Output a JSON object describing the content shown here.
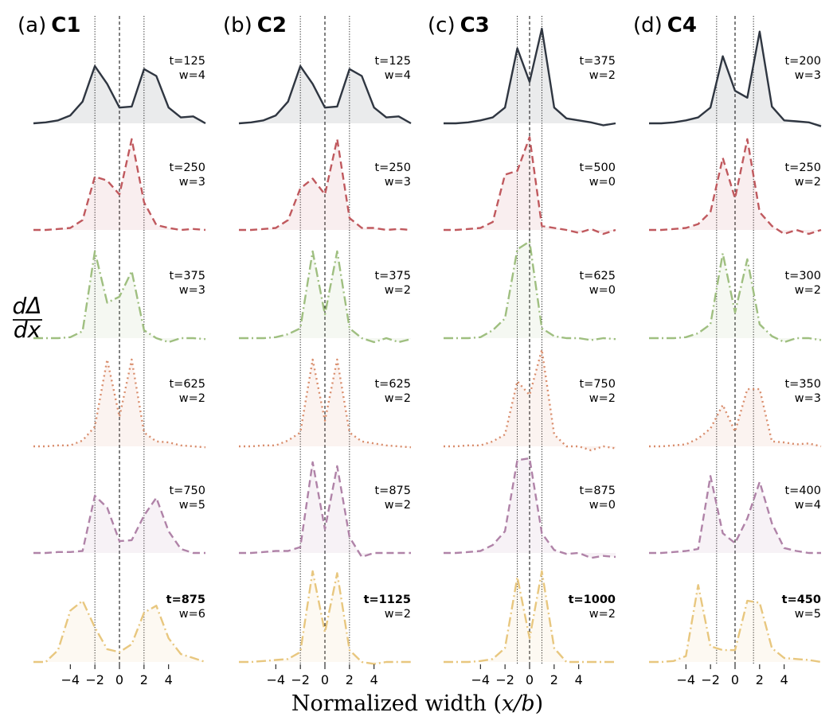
{
  "chart_data": {
    "type": "line",
    "xlabel": "Normalized width (x/b)",
    "xlabel_parts": {
      "pre": "Normalized width (",
      "var": "x/b",
      "post": ")"
    },
    "ylabel": {
      "numerator": "dΔ",
      "denominator": "dx"
    },
    "xlim": [
      -7,
      7
    ],
    "xticks": [
      -4,
      -2,
      0,
      2,
      4
    ],
    "xtick_labels": [
      "−4",
      "−2",
      "0",
      "2",
      "4"
    ],
    "ylim": [
      0,
      1
    ],
    "x": [
      -7,
      -6,
      -5,
      -4,
      -3,
      -2,
      -1,
      0,
      1,
      2,
      3,
      4,
      5,
      6,
      7
    ],
    "row_styles": [
      {
        "color": "#2f3641",
        "dash": "solid"
      },
      {
        "color": "#c0595e",
        "dash": "dashed"
      },
      {
        "color": "#9fbf80",
        "dash": "dashdot"
      },
      {
        "color": "#d98d6c",
        "dash": "dotted"
      },
      {
        "color": "#b083a8",
        "dash": "dashed"
      },
      {
        "color": "#e8c77f",
        "dash": "dashdot"
      }
    ],
    "panels": [
      {
        "label": "(a)",
        "name": "C1",
        "guides": [
          -2,
          2
        ],
        "series": [
          {
            "t": "t=125",
            "w": "w=4",
            "values": [
              0.0,
              0.01,
              0.03,
              0.08,
              0.22,
              0.58,
              0.4,
              0.16,
              0.17,
              0.55,
              0.48,
              0.16,
              0.06,
              0.07,
              0.0
            ]
          },
          {
            "t": "t=250",
            "w": "w=3",
            "values": [
              0.0,
              0.0,
              0.01,
              0.02,
              0.1,
              0.54,
              0.5,
              0.36,
              0.92,
              0.28,
              0.05,
              0.02,
              0.0,
              0.01,
              0.0
            ]
          },
          {
            "t": "t=375",
            "w": "w=3",
            "values": [
              0.0,
              0.0,
              0.0,
              0.01,
              0.07,
              0.88,
              0.36,
              0.42,
              0.68,
              0.08,
              0.0,
              -0.04,
              0.0,
              0.0,
              -0.01
            ]
          },
          {
            "t": "t=625",
            "w": "w=2",
            "values": [
              0.0,
              0.0,
              0.01,
              0.01,
              0.06,
              0.2,
              0.88,
              0.3,
              0.88,
              0.14,
              0.05,
              0.04,
              0.01,
              0.0,
              -0.01
            ]
          },
          {
            "t": "t=750",
            "w": "w=5",
            "values": [
              0.0,
              0.0,
              0.01,
              0.01,
              0.02,
              0.58,
              0.46,
              0.12,
              0.13,
              0.38,
              0.56,
              0.22,
              0.04,
              0.0,
              0.0
            ]
          },
          {
            "t": "t=875",
            "w": "w=6",
            "t_color": "#0000ff",
            "values": [
              0.0,
              0.0,
              0.12,
              0.52,
              0.62,
              0.35,
              0.13,
              0.1,
              0.18,
              0.5,
              0.57,
              0.24,
              0.08,
              0.04,
              0.0
            ]
          }
        ]
      },
      {
        "label": "(b)",
        "name": "C2",
        "guides": [
          -2,
          2
        ],
        "series": [
          {
            "t": "t=125",
            "w": "w=4",
            "values": [
              0.0,
              0.01,
              0.03,
              0.08,
              0.22,
              0.58,
              0.4,
              0.16,
              0.17,
              0.55,
              0.48,
              0.16,
              0.06,
              0.07,
              0.0
            ]
          },
          {
            "t": "t=250",
            "w": "w=3",
            "values": [
              0.0,
              0.0,
              0.01,
              0.02,
              0.1,
              0.42,
              0.52,
              0.36,
              0.92,
              0.12,
              0.02,
              0.02,
              0.0,
              0.01,
              0.0
            ]
          },
          {
            "t": "t=375",
            "w": "w=2",
            "values": [
              0.0,
              0.0,
              0.0,
              0.01,
              0.04,
              0.1,
              0.88,
              0.24,
              0.88,
              0.1,
              0.0,
              -0.04,
              0.0,
              -0.04,
              -0.01
            ]
          },
          {
            "t": "t=625",
            "w": "w=2",
            "values": [
              0.0,
              0.0,
              0.01,
              0.01,
              0.06,
              0.14,
              0.88,
              0.26,
              0.88,
              0.14,
              0.05,
              0.03,
              0.01,
              0.0,
              -0.01
            ]
          },
          {
            "t": "t=875",
            "w": "w=2",
            "values": [
              0.0,
              0.0,
              0.01,
              0.02,
              0.02,
              0.06,
              0.92,
              0.24,
              0.88,
              0.16,
              -0.04,
              0.0,
              0.0,
              0.0,
              0.0
            ]
          },
          {
            "t": "t=1125",
            "w": "w=2",
            "t_color": "#ff0000",
            "values": [
              0.0,
              0.0,
              0.01,
              0.02,
              0.03,
              0.1,
              0.92,
              0.3,
              0.9,
              0.12,
              0.0,
              -0.02,
              0.0,
              0.0,
              0.0
            ]
          }
        ]
      },
      {
        "label": "(c)",
        "name": "C3",
        "guides": [
          -1,
          1
        ],
        "series": [
          {
            "t": "t=375",
            "w": "w=2",
            "values": [
              0.0,
              0.0,
              0.01,
              0.03,
              0.06,
              0.16,
              0.76,
              0.42,
              0.96,
              0.16,
              0.05,
              0.03,
              0.01,
              -0.02,
              0.0
            ]
          },
          {
            "t": "t=500",
            "w": "w=0",
            "values": [
              0.0,
              0.0,
              0.01,
              0.02,
              0.08,
              0.56,
              0.6,
              0.94,
              0.04,
              0.02,
              0.0,
              -0.03,
              0.01,
              -0.04,
              0.0
            ]
          },
          {
            "t": "t=625",
            "w": "w=0",
            "values": [
              0.0,
              0.0,
              0.0,
              0.01,
              0.08,
              0.2,
              0.9,
              0.98,
              0.1,
              0.02,
              0.0,
              0.0,
              -0.02,
              0.0,
              -0.01
            ]
          },
          {
            "t": "t=750",
            "w": "w=2",
            "values": [
              0.0,
              0.0,
              0.01,
              0.01,
              0.05,
              0.12,
              0.66,
              0.52,
              0.98,
              0.12,
              0.0,
              0.0,
              -0.04,
              0.0,
              -0.02
            ]
          },
          {
            "t": "t=875",
            "w": "w=0",
            "values": [
              0.0,
              0.0,
              0.01,
              0.02,
              0.08,
              0.22,
              0.94,
              0.96,
              0.2,
              0.03,
              -0.01,
              0.0,
              -0.05,
              -0.03,
              -0.04
            ]
          },
          {
            "t": "t=1000",
            "w": "w=2",
            "t_color": "#ff0000",
            "values": [
              0.0,
              0.0,
              0.0,
              0.01,
              0.03,
              0.14,
              0.86,
              0.24,
              0.92,
              0.14,
              0.0,
              0.0,
              0.0,
              0.0,
              0.0
            ]
          }
        ]
      },
      {
        "label": "(d)",
        "name": "C4",
        "guides": [
          -1.5,
          1.5
        ],
        "series": [
          {
            "t": "t=200",
            "w": "w=3",
            "values": [
              0.0,
              0.0,
              0.01,
              0.03,
              0.06,
              0.16,
              0.68,
              0.33,
              0.26,
              0.93,
              0.17,
              0.03,
              0.02,
              0.01,
              -0.03
            ]
          },
          {
            "t": "t=250",
            "w": "w=2",
            "values": [
              0.0,
              0.0,
              0.01,
              0.02,
              0.06,
              0.18,
              0.73,
              0.32,
              0.92,
              0.18,
              0.04,
              -0.04,
              0.0,
              -0.04,
              0.0
            ]
          },
          {
            "t": "t=300",
            "w": "w=2",
            "values": [
              0.0,
              0.0,
              0.0,
              0.01,
              0.05,
              0.14,
              0.86,
              0.26,
              0.8,
              0.14,
              0.02,
              -0.04,
              0.0,
              0.0,
              -0.02
            ]
          },
          {
            "t": "t=350",
            "w": "w=3",
            "values": [
              0.0,
              0.0,
              0.01,
              0.02,
              0.08,
              0.18,
              0.42,
              0.15,
              0.58,
              0.58,
              0.05,
              0.04,
              0.02,
              0.03,
              0.0
            ]
          },
          {
            "t": "t=400",
            "w": "w=4",
            "values": [
              0.0,
              0.0,
              0.01,
              0.02,
              0.04,
              0.78,
              0.2,
              0.1,
              0.35,
              0.72,
              0.3,
              0.05,
              0.02,
              0.0,
              0.0
            ]
          },
          {
            "t": "t=450",
            "w": "w=5",
            "t_color": "#0000ff",
            "values": [
              0.0,
              0.0,
              0.01,
              0.06,
              0.78,
              0.16,
              0.12,
              0.12,
              0.62,
              0.6,
              0.14,
              0.04,
              0.03,
              0.02,
              0.0
            ]
          }
        ]
      }
    ]
  }
}
